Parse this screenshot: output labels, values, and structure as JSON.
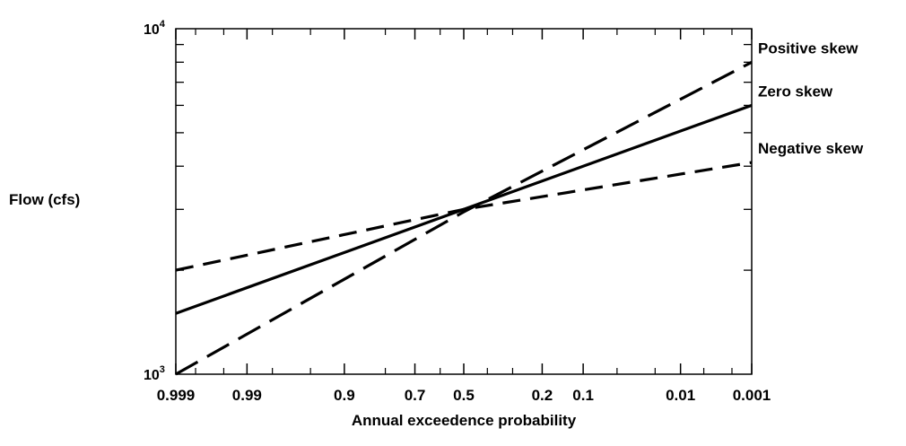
{
  "chart_data": {
    "type": "line",
    "title": "",
    "xlabel": "Annual exceedence probability",
    "ylabel": "Flow (cfs)",
    "y_scale": "log",
    "x_scale": "normal probability (exceedence)",
    "ylim": [
      1000,
      10000
    ],
    "xlim": [
      0.999,
      0.001
    ],
    "y_ticks": [
      {
        "base": "10",
        "exp": "3",
        "value": 1000
      },
      {
        "base": "10",
        "exp": "4",
        "value": 10000
      }
    ],
    "x_ticks": [
      "0.999",
      "0.99",
      "0.9",
      "0.7",
      "0.5",
      "0.2",
      "0.1",
      "0.01",
      "0.001"
    ],
    "grid": false,
    "series": [
      {
        "name": "Positive skew",
        "style": "long-dash",
        "x": [
          0.999,
          0.5,
          0.001
        ],
        "y": [
          1000,
          2950,
          8000
        ]
      },
      {
        "name": "Zero skew",
        "style": "solid",
        "x": [
          0.999,
          0.5,
          0.001
        ],
        "y": [
          1500,
          3000,
          6000
        ]
      },
      {
        "name": "Negative skew",
        "style": "dash",
        "x": [
          0.999,
          0.5,
          0.001
        ],
        "y": [
          2000,
          3000,
          4100
        ]
      }
    ]
  }
}
